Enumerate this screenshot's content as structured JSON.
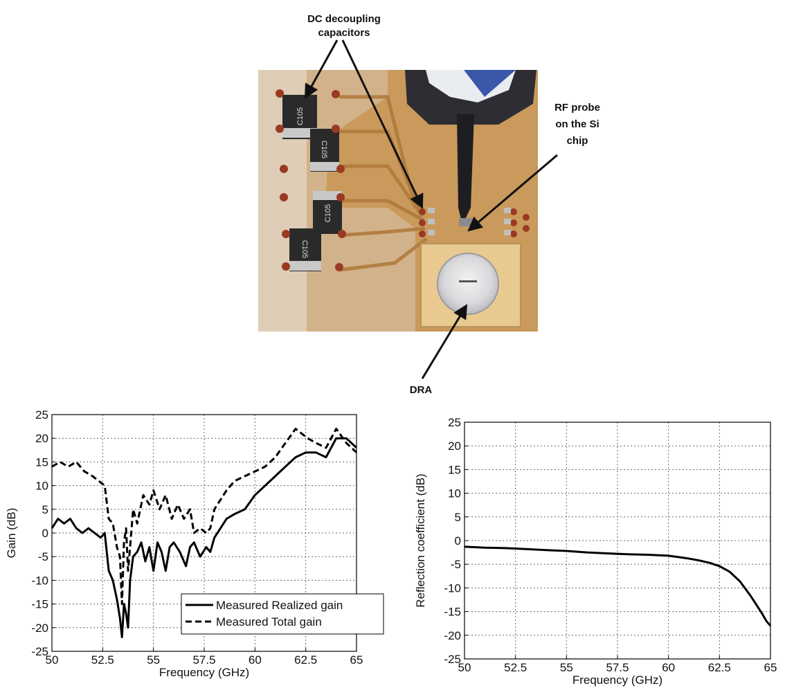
{
  "photo": {
    "annotations": [
      "DC decoupling",
      "capacitors",
      "RF probe",
      "on the Si",
      "chip",
      "DRA"
    ],
    "capacitor_marking": "C105"
  },
  "chart_data": [
    {
      "type": "line",
      "xlabel": "Frequency (GHz)",
      "ylabel": "Gain (dB)",
      "xlim": [
        50,
        65
      ],
      "ylim": [
        -25,
        25
      ],
      "xticks": [
        50,
        52.5,
        55,
        57.5,
        60,
        62.5,
        65
      ],
      "yticks": [
        -25,
        -20,
        -15,
        -10,
        -5,
        0,
        5,
        10,
        15,
        20,
        25
      ],
      "grid": true,
      "legend_position": "bottom-right",
      "series": [
        {
          "name": "Measured Realized gain",
          "style": "solid",
          "x": [
            50,
            50.3,
            50.6,
            50.9,
            51.2,
            51.5,
            51.8,
            52.1,
            52.4,
            52.6,
            52.8,
            53.0,
            53.2,
            53.35,
            53.45,
            53.55,
            53.65,
            53.75,
            53.85,
            54.0,
            54.2,
            54.4,
            54.6,
            54.8,
            55.0,
            55.2,
            55.4,
            55.6,
            55.8,
            56.0,
            56.3,
            56.6,
            56.8,
            57.0,
            57.3,
            57.6,
            57.8,
            58.0,
            58.3,
            58.6,
            59.0,
            59.5,
            60.0,
            60.5,
            61.0,
            61.5,
            62.0,
            62.5,
            63.0,
            63.5,
            64.0,
            64.5,
            65.0
          ],
          "y": [
            1,
            3,
            2,
            3,
            1,
            0,
            1,
            0,
            -1,
            0,
            -8,
            -10,
            -14,
            -18,
            -22,
            -15,
            -17,
            -20,
            -10,
            -5,
            -4,
            -2,
            -6,
            -3,
            -8,
            -2,
            -4,
            -8,
            -3,
            -2,
            -4,
            -7,
            -3,
            -2,
            -5,
            -3,
            -4,
            -1,
            1,
            3,
            4,
            5,
            8,
            10,
            12,
            14,
            16,
            17,
            17,
            16,
            20,
            20,
            18
          ]
        },
        {
          "name": "Measured Total gain",
          "style": "dashed",
          "x": [
            50,
            50.4,
            50.8,
            51.2,
            51.6,
            52.0,
            52.3,
            52.6,
            52.8,
            53.0,
            53.2,
            53.35,
            53.45,
            53.55,
            53.65,
            53.75,
            53.85,
            54.0,
            54.2,
            54.5,
            54.8,
            55.0,
            55.3,
            55.6,
            55.9,
            56.2,
            56.5,
            56.8,
            57.0,
            57.3,
            57.6,
            57.8,
            58.0,
            58.3,
            58.6,
            59.0,
            59.5,
            60.0,
            60.5,
            61.0,
            61.5,
            62.0,
            62.3,
            62.6,
            63.0,
            63.5,
            64.0,
            64.5,
            65.0
          ],
          "y": [
            14,
            15,
            14,
            15,
            13,
            12,
            11,
            10,
            3,
            2,
            -3,
            -5,
            -15,
            -2,
            1,
            -8,
            -3,
            5,
            2,
            8,
            6,
            9,
            5,
            8,
            3,
            6,
            3,
            5,
            0,
            1,
            0,
            1,
            5,
            7,
            9,
            11,
            12,
            13,
            14,
            16,
            19,
            22,
            21,
            20,
            19,
            18,
            22,
            19,
            17
          ]
        }
      ]
    },
    {
      "type": "line",
      "xlabel": "Frequency (GHz)",
      "ylabel": "Reflection coefficient (dB)",
      "xlim": [
        50,
        65
      ],
      "ylim": [
        -25,
        25
      ],
      "xticks": [
        50,
        52.5,
        55,
        57.5,
        60,
        62.5,
        65
      ],
      "yticks": [
        -25,
        -20,
        -15,
        -10,
        -5,
        0,
        5,
        10,
        15,
        20,
        25
      ],
      "grid": true,
      "series": [
        {
          "style": "solid",
          "x": [
            50,
            51,
            52,
            53,
            54,
            55,
            56,
            57,
            58,
            59,
            60,
            60.5,
            61,
            61.5,
            62,
            62.5,
            63,
            63.5,
            64,
            64.3,
            64.6,
            64.8,
            65.0
          ],
          "y": [
            -1.3,
            -1.5,
            -1.6,
            -1.8,
            -2.0,
            -2.2,
            -2.5,
            -2.7,
            -2.9,
            -3.0,
            -3.2,
            -3.5,
            -3.8,
            -4.2,
            -4.7,
            -5.4,
            -6.6,
            -8.6,
            -11.5,
            -13.5,
            -15.5,
            -17.0,
            -18.0
          ]
        }
      ]
    }
  ]
}
